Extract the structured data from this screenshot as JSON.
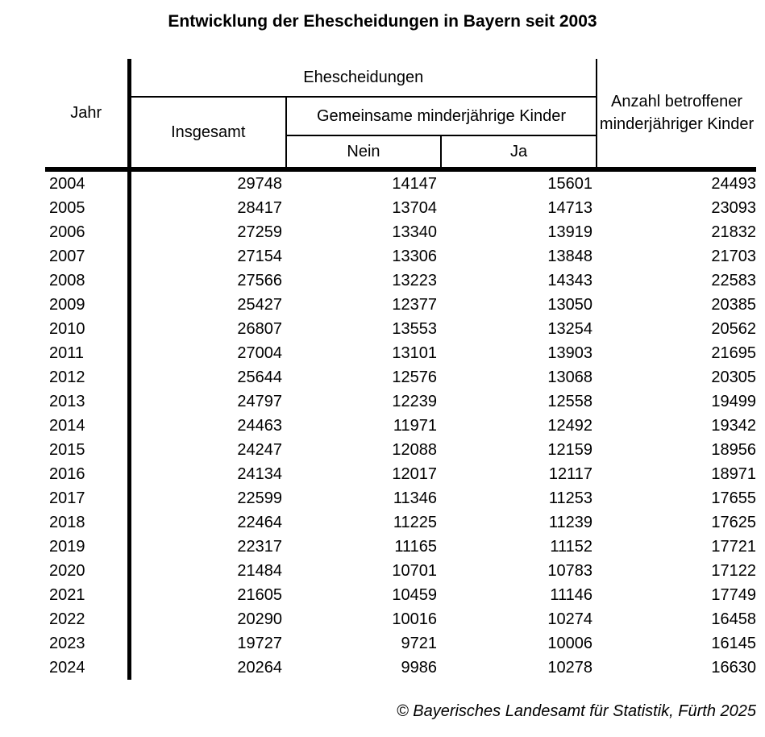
{
  "title": "Entwicklung der Ehescheidungen in Bayern seit 2003",
  "colors": {
    "background": "#ffffff",
    "text": "#000000",
    "border": "#000000"
  },
  "table": {
    "headers": {
      "jahr": "Jahr",
      "ehescheidungen_group": "Ehescheidungen",
      "insgesamt": "Insgesamt",
      "gemeinsame_kinder_group": "Gemeinsame minderjährige Kinder",
      "nein": "Nein",
      "ja": "Ja",
      "anzahl_kinder": "Anzahl betroffener minderjähriger Kinder"
    },
    "rows": [
      [
        "2004",
        "29748",
        "14147",
        "15601",
        "24493"
      ],
      [
        "2005",
        "28417",
        "13704",
        "14713",
        "23093"
      ],
      [
        "2006",
        "27259",
        "13340",
        "13919",
        "21832"
      ],
      [
        "2007",
        "27154",
        "13306",
        "13848",
        "21703"
      ],
      [
        "2008",
        "27566",
        "13223",
        "14343",
        "22583"
      ],
      [
        "2009",
        "25427",
        "12377",
        "13050",
        "20385"
      ],
      [
        "2010",
        "26807",
        "13553",
        "13254",
        "20562"
      ],
      [
        "2011",
        "27004",
        "13101",
        "13903",
        "21695"
      ],
      [
        "2012",
        "25644",
        "12576",
        "13068",
        "20305"
      ],
      [
        "2013",
        "24797",
        "12239",
        "12558",
        "19499"
      ],
      [
        "2014",
        "24463",
        "11971",
        "12492",
        "19342"
      ],
      [
        "2015",
        "24247",
        "12088",
        "12159",
        "18956"
      ],
      [
        "2016",
        "24134",
        "12017",
        "12117",
        "18971"
      ],
      [
        "2017",
        "22599",
        "11346",
        "11253",
        "17655"
      ],
      [
        "2018",
        "22464",
        "11225",
        "11239",
        "17625"
      ],
      [
        "2019",
        "22317",
        "11165",
        "11152",
        "17721"
      ],
      [
        "2020",
        "21484",
        "10701",
        "10783",
        "17122"
      ],
      [
        "2021",
        "21605",
        "10459",
        "11146",
        "17749"
      ],
      [
        "2022",
        "20290",
        "10016",
        "10274",
        "16458"
      ],
      [
        "2023",
        "19727",
        "9721",
        "10006",
        "16145"
      ],
      [
        "2024",
        "20264",
        "9986",
        "10278",
        "16630"
      ]
    ]
  },
  "footer": {
    "copyright": "© Bayerisches Landesamt für Statistik, Fürth 2025"
  }
}
